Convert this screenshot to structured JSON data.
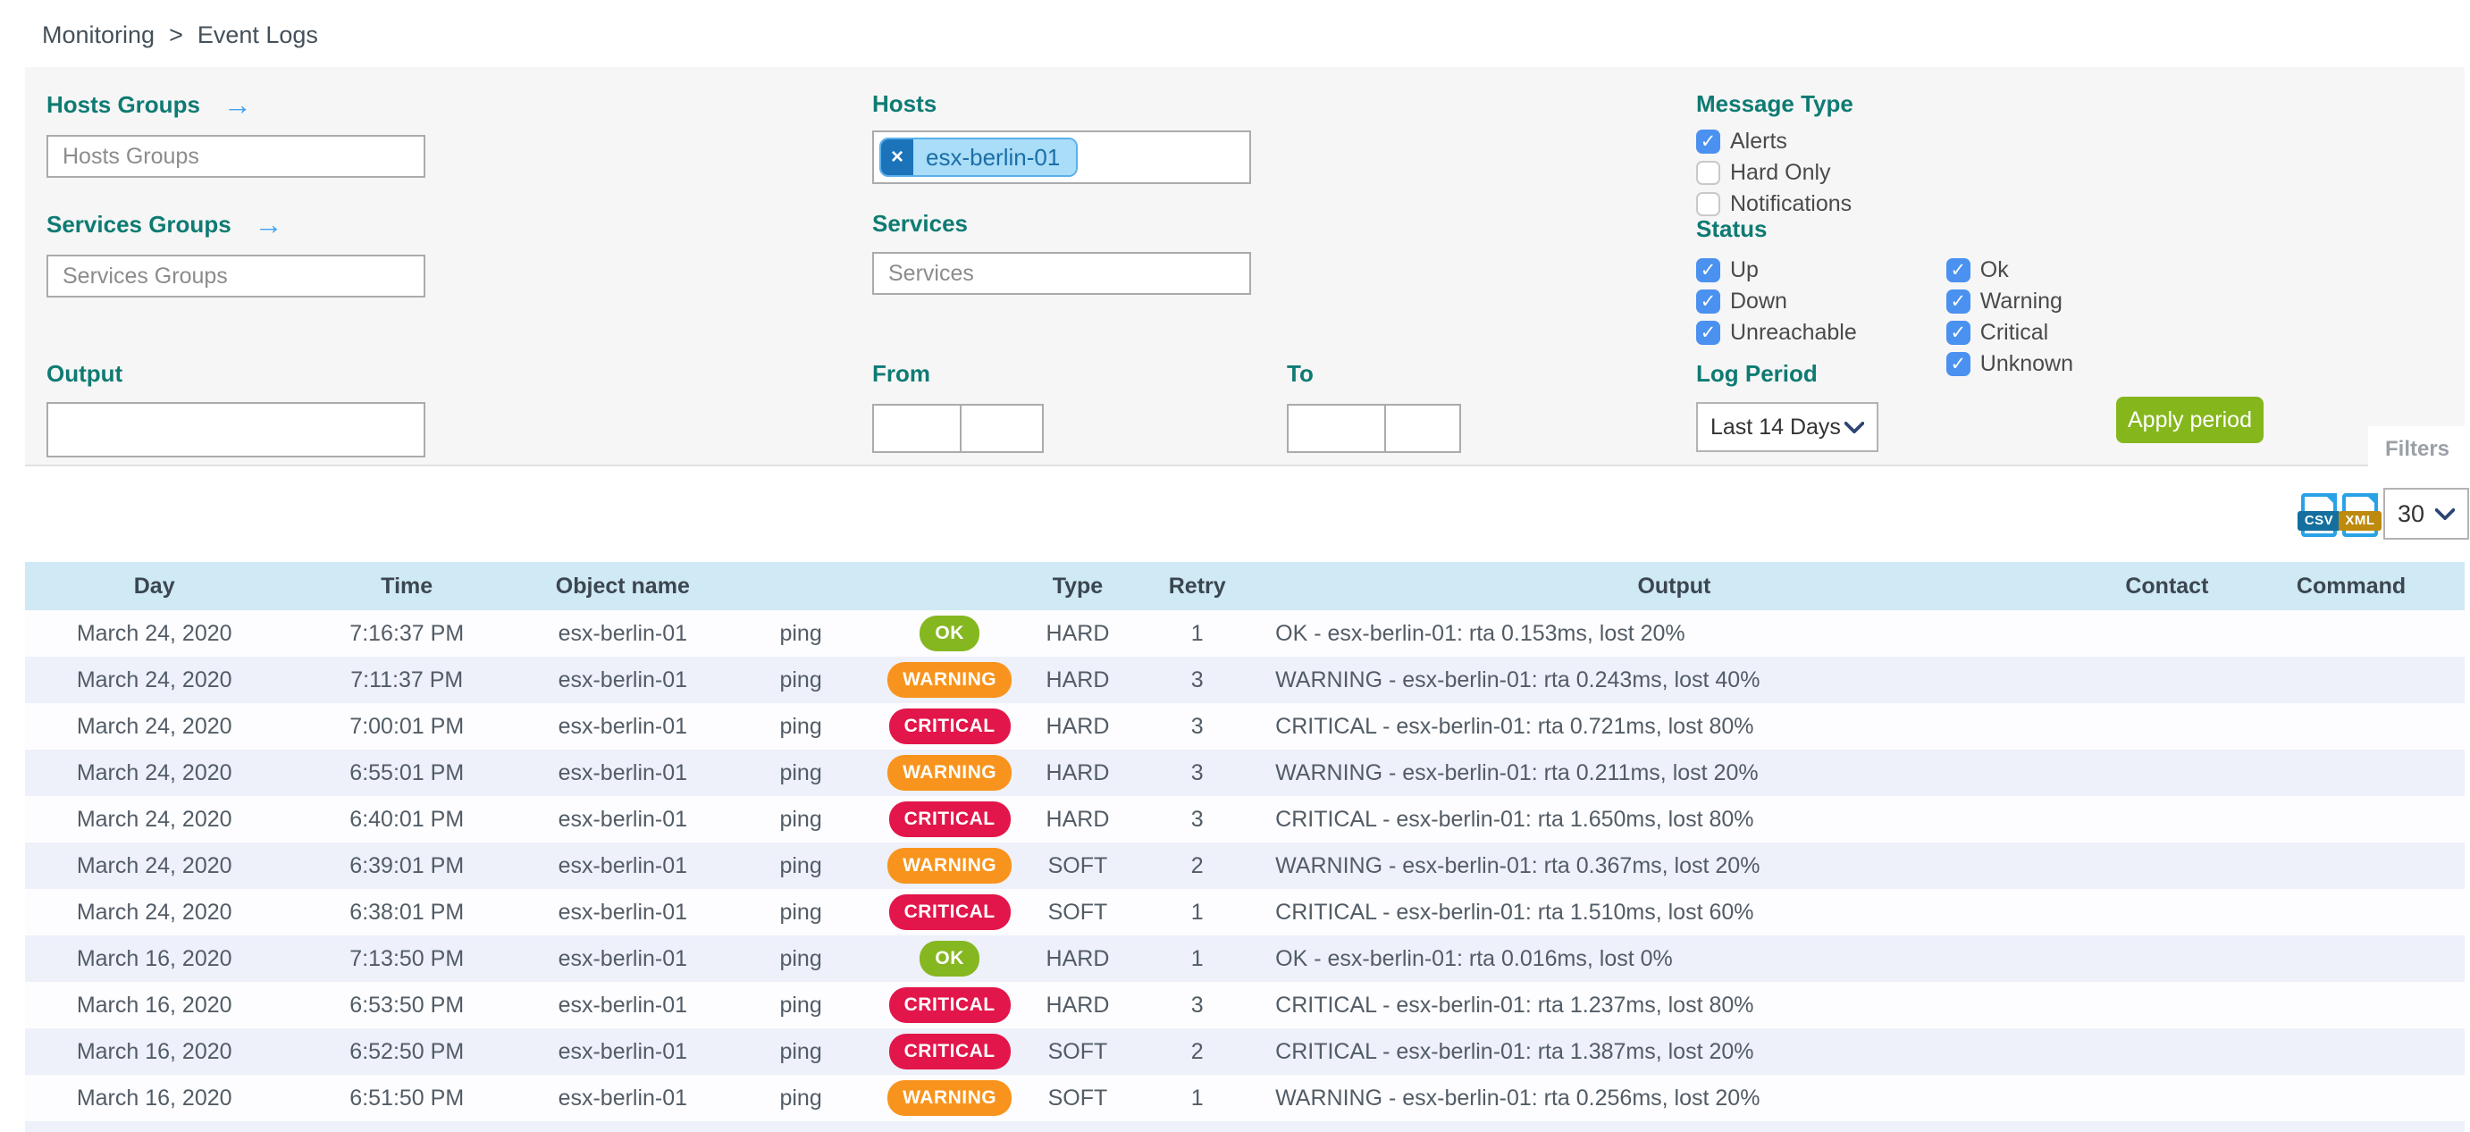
{
  "breadcrumb": {
    "items": [
      "Monitoring",
      "Event Logs"
    ],
    "separator": ">"
  },
  "filters": {
    "hosts_groups": {
      "label": "Hosts Groups",
      "placeholder": "Hosts Groups",
      "value": ""
    },
    "services_groups": {
      "label": "Services Groups",
      "placeholder": "Services Groups",
      "value": ""
    },
    "hosts": {
      "label": "Hosts",
      "chips": [
        "esx-berlin-01"
      ],
      "chip_remove": "×"
    },
    "services": {
      "label": "Services",
      "placeholder": "Services",
      "value": ""
    },
    "output": {
      "label": "Output",
      "value": ""
    },
    "from": {
      "label": "From",
      "value_1": "",
      "value_2": ""
    },
    "to": {
      "label": "To",
      "value_1": "",
      "value_2": ""
    },
    "message_type": {
      "label": "Message Type",
      "options": [
        {
          "label": "Alerts",
          "checked": true
        },
        {
          "label": "Hard Only",
          "checked": false
        },
        {
          "label": "Notifications",
          "checked": false
        }
      ]
    },
    "status": {
      "label": "Status",
      "columns": [
        [
          {
            "label": "Up",
            "checked": true
          },
          {
            "label": "Down",
            "checked": true
          },
          {
            "label": "Unreachable",
            "checked": true
          }
        ],
        [
          {
            "label": "Ok",
            "checked": true
          },
          {
            "label": "Warning",
            "checked": true
          },
          {
            "label": "Critical",
            "checked": true
          },
          {
            "label": "Unknown",
            "checked": true
          }
        ]
      ]
    },
    "log_period": {
      "label": "Log Period",
      "value": "Last 14 Days"
    },
    "apply_button": "Apply period",
    "filters_tab": "Filters"
  },
  "toolbar": {
    "export_icons": [
      "CSV",
      "XML"
    ],
    "page_size": "30"
  },
  "table": {
    "columns": [
      "Day",
      "Time",
      "Object name",
      "",
      "",
      "Type",
      "Retry",
      "Output",
      "Contact",
      "Command"
    ],
    "rows": [
      {
        "day": "March 24, 2020",
        "time": "7:16:37 PM",
        "object": "esx-berlin-01",
        "service": "ping",
        "status": "OK",
        "type": "HARD",
        "retry": "1",
        "output": "OK - esx-berlin-01: rta 0.153ms, lost 20%",
        "contact": "",
        "command": ""
      },
      {
        "day": "March 24, 2020",
        "time": "7:11:37 PM",
        "object": "esx-berlin-01",
        "service": "ping",
        "status": "WARNING",
        "type": "HARD",
        "retry": "3",
        "output": "WARNING - esx-berlin-01: rta 0.243ms, lost 40%",
        "contact": "",
        "command": ""
      },
      {
        "day": "March 24, 2020",
        "time": "7:00:01 PM",
        "object": "esx-berlin-01",
        "service": "ping",
        "status": "CRITICAL",
        "type": "HARD",
        "retry": "3",
        "output": "CRITICAL - esx-berlin-01: rta 0.721ms, lost 80%",
        "contact": "",
        "command": ""
      },
      {
        "day": "March 24, 2020",
        "time": "6:55:01 PM",
        "object": "esx-berlin-01",
        "service": "ping",
        "status": "WARNING",
        "type": "HARD",
        "retry": "3",
        "output": "WARNING - esx-berlin-01: rta 0.211ms, lost 20%",
        "contact": "",
        "command": ""
      },
      {
        "day": "March 24, 2020",
        "time": "6:40:01 PM",
        "object": "esx-berlin-01",
        "service": "ping",
        "status": "CRITICAL",
        "type": "HARD",
        "retry": "3",
        "output": "CRITICAL - esx-berlin-01: rta 1.650ms, lost 80%",
        "contact": "",
        "command": ""
      },
      {
        "day": "March 24, 2020",
        "time": "6:39:01 PM",
        "object": "esx-berlin-01",
        "service": "ping",
        "status": "WARNING",
        "type": "SOFT",
        "retry": "2",
        "output": "WARNING - esx-berlin-01: rta 0.367ms, lost 20%",
        "contact": "",
        "command": ""
      },
      {
        "day": "March 24, 2020",
        "time": "6:38:01 PM",
        "object": "esx-berlin-01",
        "service": "ping",
        "status": "CRITICAL",
        "type": "SOFT",
        "retry": "1",
        "output": "CRITICAL - esx-berlin-01: rta 1.510ms, lost 60%",
        "contact": "",
        "command": ""
      },
      {
        "day": "March 16, 2020",
        "time": "7:13:50 PM",
        "object": "esx-berlin-01",
        "service": "ping",
        "status": "OK",
        "type": "HARD",
        "retry": "1",
        "output": "OK - esx-berlin-01: rta 0.016ms, lost 0%",
        "contact": "",
        "command": ""
      },
      {
        "day": "March 16, 2020",
        "time": "6:53:50 PM",
        "object": "esx-berlin-01",
        "service": "ping",
        "status": "CRITICAL",
        "type": "HARD",
        "retry": "3",
        "output": "CRITICAL - esx-berlin-01: rta 1.237ms, lost 80%",
        "contact": "",
        "command": ""
      },
      {
        "day": "March 16, 2020",
        "time": "6:52:50 PM",
        "object": "esx-berlin-01",
        "service": "ping",
        "status": "CRITICAL",
        "type": "SOFT",
        "retry": "2",
        "output": "CRITICAL - esx-berlin-01: rta 1.387ms, lost 20%",
        "contact": "",
        "command": ""
      },
      {
        "day": "March 16, 2020",
        "time": "6:51:50 PM",
        "object": "esx-berlin-01",
        "service": "ping",
        "status": "WARNING",
        "type": "SOFT",
        "retry": "1",
        "output": "WARNING - esx-berlin-01: rta 0.256ms, lost 20%",
        "contact": "",
        "command": ""
      }
    ]
  },
  "colors": {
    "accent_teal": "#0e7b73",
    "checkbox_blue": "#4a91f0",
    "button_green": "#85b71d",
    "status_ok": "#85b720",
    "status_warning": "#f8941d",
    "status_critical": "#e2164a",
    "table_header_bg": "#cfe9f5",
    "row_alt_bg": "#eef0fa"
  }
}
